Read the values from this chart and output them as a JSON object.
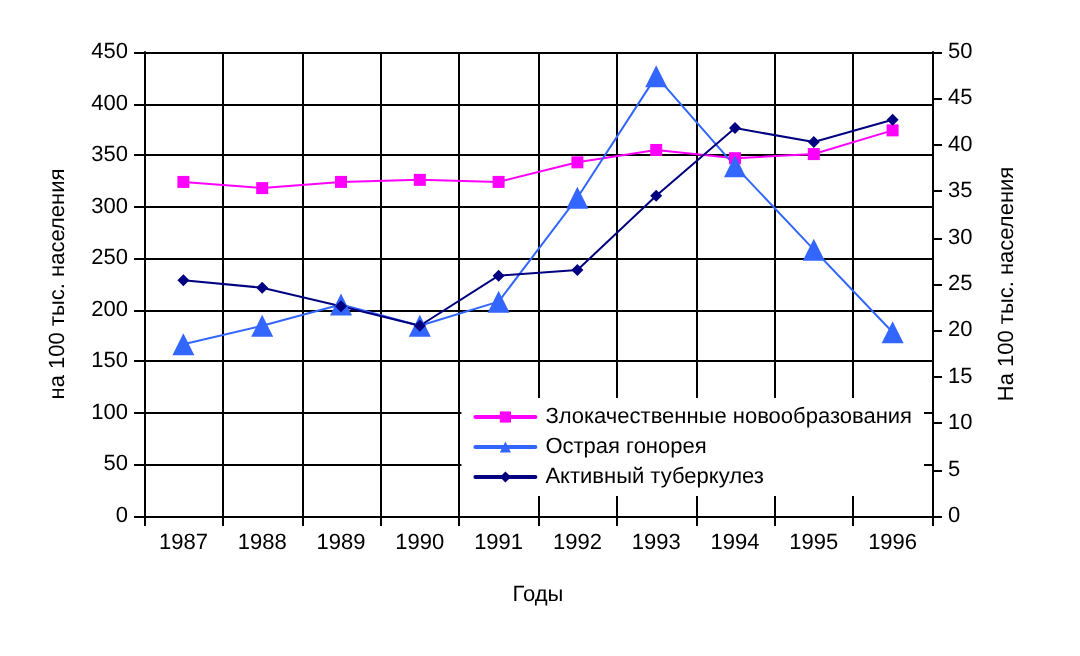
{
  "chart_data": {
    "type": "line",
    "xlabel": "Годы",
    "ylabel": "на 100 тыс. населения",
    "y2label": "На 100 тыс. населения",
    "categories": [
      "1987",
      "1988",
      "1989",
      "1990",
      "1991",
      "1992",
      "1993",
      "1994",
      "1995",
      "1996"
    ],
    "series": [
      {
        "name": "Злокачественные новообразования",
        "color": "#ff00ff",
        "marker": "square",
        "values": [
          324,
          318,
          324,
          326,
          324,
          343,
          355,
          347,
          351,
          374
        ]
      },
      {
        "name": "Острая гонорея",
        "color": "#3366ff",
        "marker": "triangle",
        "axis": "y2",
        "values": [
          18.5,
          20.5,
          22.8,
          20.5,
          23.1,
          34.3,
          47.4,
          37.7,
          28.7,
          19.8
        ]
      },
      {
        "name": "Активный туберкулез",
        "color": "#000080",
        "marker": "diamond",
        "axis": "y2",
        "values": [
          25.4,
          24.6,
          22.6,
          20.5,
          25.9,
          26.5,
          34.5,
          41.8,
          40.3,
          42.7
        ]
      }
    ],
    "ylim": [
      0,
      450
    ],
    "yticks": [
      0,
      50,
      100,
      150,
      200,
      250,
      300,
      350,
      400,
      450
    ],
    "y2lim": [
      0,
      50
    ],
    "y2ticks": [
      0,
      5,
      10,
      15,
      20,
      25,
      30,
      35,
      40,
      45,
      50
    ],
    "grid": true,
    "legend": "bottom right",
    "line_style": "solid"
  }
}
